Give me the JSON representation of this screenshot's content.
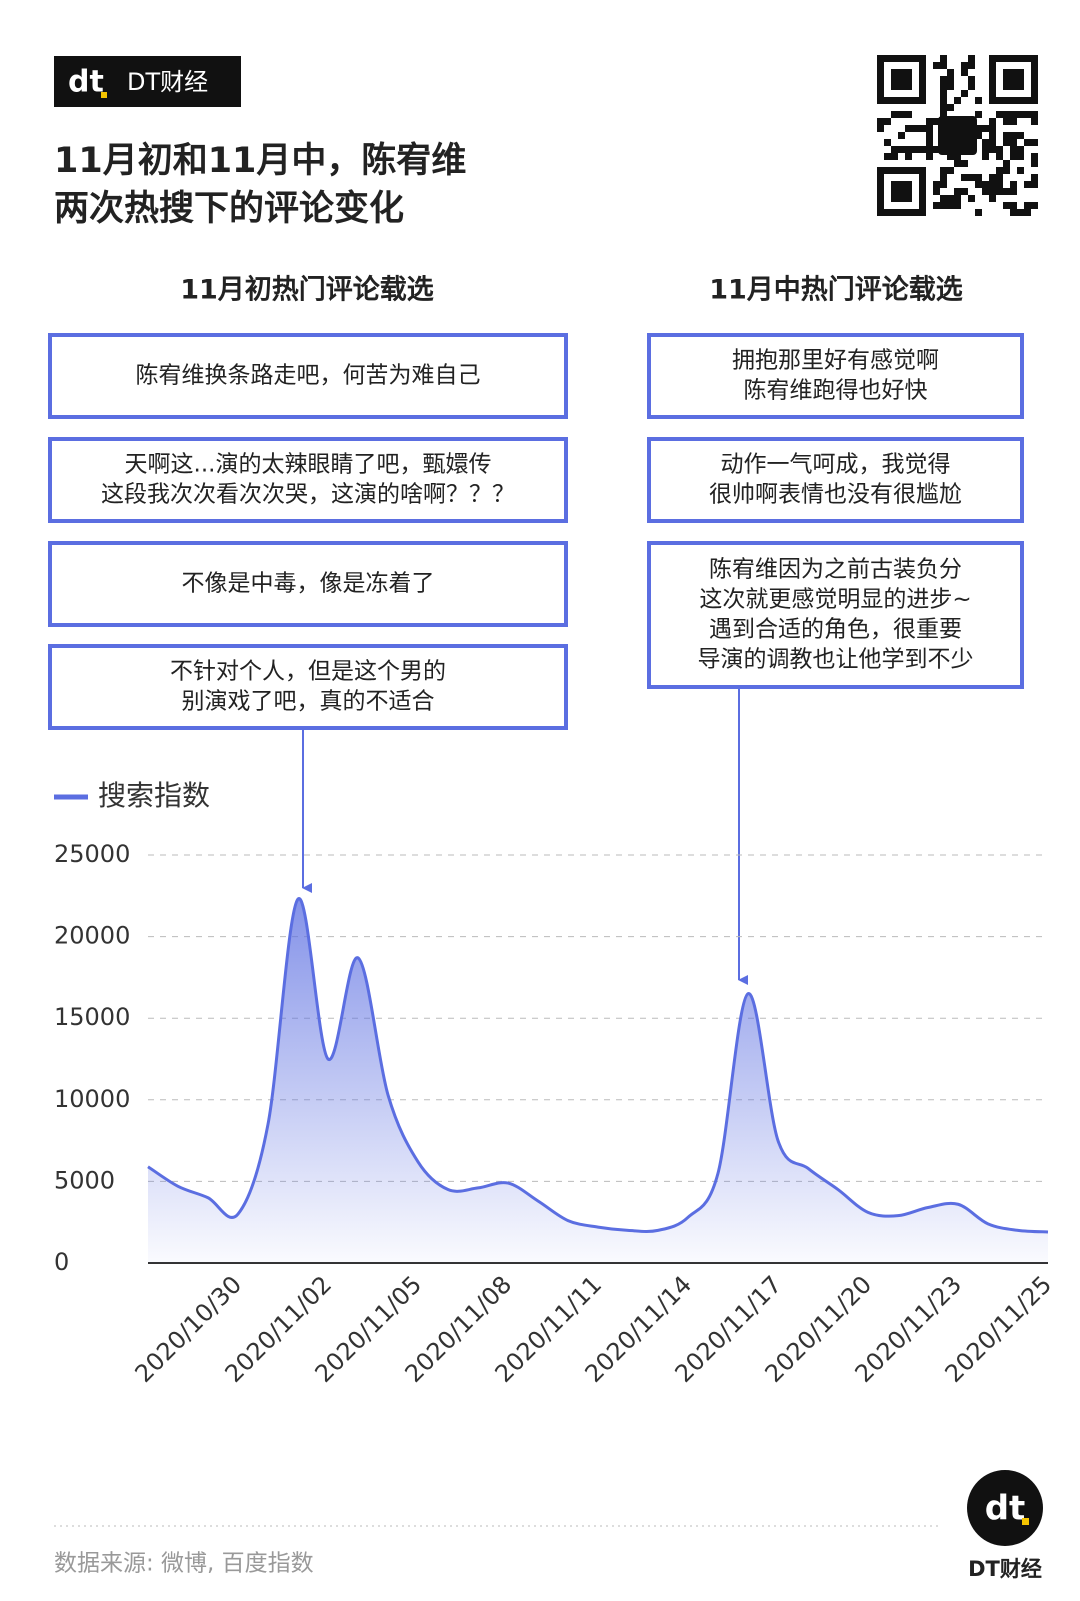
{
  "header": {
    "brand": "DT财经",
    "title_lines": [
      "11月初和11月中，陈宥维",
      "两次热搜下的评论变化"
    ]
  },
  "comments": [
    {
      "title": "11月初热门评论载选",
      "items": [
        [
          "陈宥维换条路走吧，何苦为难自己"
        ],
        [
          "天啊这...演的太辣眼睛了吧，甄嬛传",
          "这段我次次看次次哭，这演的啥啊？？？"
        ],
        [
          "不像是中毒，像是冻着了"
        ],
        [
          "不针对个人，但是这个男的",
          "别演戏了吧，真的不适合"
        ]
      ]
    },
    {
      "title": "11月中热门评论载选",
      "items": [
        [
          "拥抱那里好有感觉啊",
          "陈宥维跑得也好快"
        ],
        [
          "动作一气呵成，我觉得",
          "很帅啊表情也没有很尴尬"
        ],
        [
          "陈宥维因为之前古装负分",
          "这次就更感觉明显的进步~",
          "遇到合适的角色，很重要",
          "导演的调教也让他学到不少"
        ]
      ]
    }
  ],
  "chart_data": {
    "type": "area",
    "categories": [
      null,
      null,
      null,
      "2020/10/30",
      null,
      null,
      "2020/11/02",
      null,
      null,
      "2020/11/05",
      null,
      null,
      "2020/11/08",
      null,
      null,
      "2020/11/11",
      null,
      null,
      "2020/11/14",
      null,
      null,
      "2020/11/17",
      null,
      null,
      "2020/11/20",
      null,
      null,
      "2020/11/23",
      null,
      null,
      "2020/11/25"
    ],
    "series": [
      {
        "name": "搜索指数",
        "color": "#5b6ee1",
        "values": [
          5900,
          4700,
          4000,
          3000,
          8500,
          22300,
          12500,
          18700,
          10300,
          6200,
          4500,
          4600,
          4900,
          3800,
          2600,
          2200,
          2000,
          2000,
          2800,
          5500,
          16500,
          7500,
          5800,
          4500,
          3100,
          2900,
          3400,
          3600,
          2400,
          2000,
          1900
        ]
      }
    ],
    "ylim": [
      0,
      25000
    ],
    "yticks": [
      0,
      5000,
      10000,
      15000,
      20000,
      25000
    ],
    "grid": true,
    "legend": "top-left"
  },
  "footer": {
    "source": "数据来源: 微博, 百度指数",
    "brand": "DT财经"
  }
}
